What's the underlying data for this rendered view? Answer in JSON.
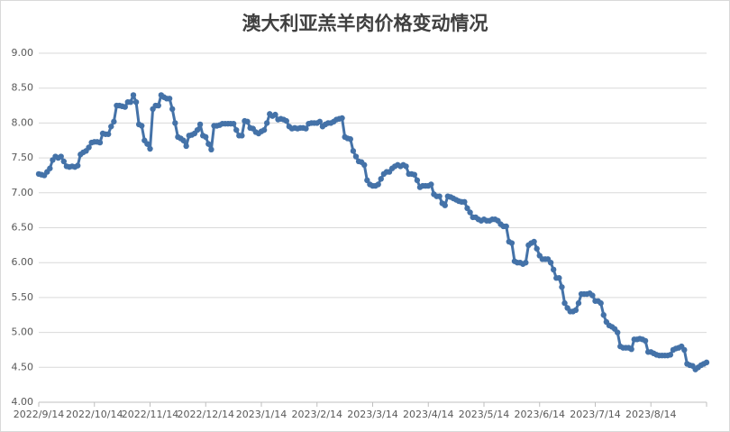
{
  "chart_data": {
    "type": "line",
    "title": "澳大利亚羔羊肉价格变动情况",
    "categories": [
      "2022/9/14",
      null,
      null,
      null,
      null,
      null,
      null,
      null,
      null,
      null,
      null,
      null,
      null,
      null,
      null,
      null,
      null,
      null,
      null,
      null,
      "2022/10/14",
      null,
      null,
      null,
      null,
      null,
      null,
      null,
      null,
      null,
      null,
      null,
      null,
      null,
      null,
      null,
      null,
      null,
      null,
      null,
      "2022/11/14",
      null,
      null,
      null,
      null,
      null,
      null,
      null,
      null,
      null,
      null,
      null,
      null,
      null,
      null,
      null,
      null,
      null,
      null,
      null,
      "2022/12/14",
      null,
      null,
      null,
      null,
      null,
      null,
      null,
      null,
      null,
      null,
      null,
      null,
      null,
      null,
      null,
      null,
      null,
      null,
      null,
      "2023/1/14",
      null,
      null,
      null,
      null,
      null,
      null,
      null,
      null,
      null,
      null,
      null,
      null,
      null,
      null,
      null,
      null,
      null,
      null,
      null,
      "2023/2/14",
      null,
      null,
      null,
      null,
      null,
      null,
      null,
      null,
      null,
      null,
      null,
      null,
      null,
      null,
      null,
      null,
      null,
      null,
      null,
      "2023/3/14",
      null,
      null,
      null,
      null,
      null,
      null,
      null,
      null,
      null,
      null,
      null,
      null,
      null,
      null,
      null,
      null,
      null,
      null,
      null,
      "2023/4/14",
      null,
      null,
      null,
      null,
      null,
      null,
      null,
      null,
      null,
      null,
      null,
      null,
      null,
      null,
      null,
      null,
      null,
      null,
      null,
      "2023/5/14",
      null,
      null,
      null,
      null,
      null,
      null,
      null,
      null,
      null,
      null,
      null,
      null,
      null,
      null,
      null,
      null,
      null,
      null,
      null,
      "2023/6/14",
      null,
      null,
      null,
      null,
      null,
      null,
      null,
      null,
      null,
      null,
      null,
      null,
      null,
      null,
      null,
      null,
      null,
      null,
      null,
      "2023/7/14",
      null,
      null,
      null,
      null,
      null,
      null,
      null,
      null,
      null,
      null,
      null,
      null,
      null,
      null,
      null,
      null,
      null,
      null,
      null,
      "2023/8/14",
      null,
      null,
      null,
      null,
      null,
      null,
      null,
      null,
      null,
      null,
      null,
      null,
      null,
      null,
      null,
      null,
      null,
      null,
      null,
      null
    ],
    "values": [
      7.27,
      7.26,
      7.25,
      7.3,
      7.35,
      7.47,
      7.52,
      7.5,
      7.52,
      7.45,
      7.38,
      7.37,
      7.38,
      7.37,
      7.39,
      7.55,
      7.58,
      7.6,
      7.65,
      7.72,
      7.73,
      7.73,
      7.72,
      7.85,
      7.84,
      7.84,
      7.95,
      8.02,
      8.25,
      8.25,
      8.24,
      8.23,
      8.3,
      8.3,
      8.4,
      8.3,
      7.98,
      7.96,
      7.75,
      7.7,
      7.63,
      8.2,
      8.25,
      8.25,
      8.4,
      8.37,
      8.35,
      8.35,
      8.2,
      8.0,
      7.8,
      7.78,
      7.75,
      7.67,
      7.82,
      7.83,
      7.85,
      7.9,
      7.98,
      7.82,
      7.8,
      7.7,
      7.62,
      7.96,
      7.96,
      7.97,
      7.99,
      7.99,
      7.99,
      7.99,
      7.99,
      7.9,
      7.82,
      7.82,
      8.03,
      8.02,
      7.93,
      7.92,
      7.87,
      7.85,
      7.88,
      7.9,
      8.0,
      8.13,
      8.1,
      8.12,
      8.05,
      8.06,
      8.05,
      8.03,
      7.95,
      7.92,
      7.93,
      7.92,
      7.93,
      7.93,
      7.92,
      7.99,
      8.0,
      8.0,
      8.0,
      8.02,
      7.95,
      7.98,
      8.0,
      8.0,
      8.02,
      8.05,
      8.06,
      8.07,
      7.8,
      7.78,
      7.77,
      7.6,
      7.52,
      7.45,
      7.44,
      7.4,
      7.18,
      7.12,
      7.1,
      7.1,
      7.12,
      7.2,
      7.27,
      7.3,
      7.3,
      7.35,
      7.38,
      7.4,
      7.38,
      7.4,
      7.38,
      7.27,
      7.27,
      7.26,
      7.18,
      7.08,
      7.1,
      7.1,
      7.1,
      7.12,
      6.98,
      6.95,
      6.95,
      6.85,
      6.82,
      6.95,
      6.94,
      6.92,
      6.9,
      6.88,
      6.87,
      6.87,
      6.78,
      6.72,
      6.65,
      6.65,
      6.62,
      6.6,
      6.62,
      6.6,
      6.6,
      6.62,
      6.62,
      6.6,
      6.55,
      6.52,
      6.52,
      6.3,
      6.28,
      6.02,
      6.0,
      6.0,
      5.98,
      6.0,
      6.25,
      6.28,
      6.3,
      6.2,
      6.1,
      6.05,
      6.05,
      6.05,
      6.0,
      5.9,
      5.78,
      5.78,
      5.65,
      5.42,
      5.35,
      5.3,
      5.3,
      5.32,
      5.42,
      5.55,
      5.55,
      5.55,
      5.56,
      5.53,
      5.45,
      5.45,
      5.42,
      5.25,
      5.15,
      5.1,
      5.08,
      5.05,
      5.0,
      4.8,
      4.78,
      4.78,
      4.78,
      4.76,
      4.9,
      4.9,
      4.91,
      4.9,
      4.88,
      4.72,
      4.72,
      4.7,
      4.68,
      4.67,
      4.67,
      4.67,
      4.67,
      4.68,
      4.75,
      4.77,
      4.78,
      4.8,
      4.75,
      4.55,
      4.53,
      4.52,
      4.47,
      4.5,
      4.53,
      4.55,
      4.57
    ],
    "color": "#4472a8",
    "ylim": [
      4,
      9
    ],
    "yticks": [
      {
        "value": 4,
        "label": "4.00"
      },
      {
        "value": 4.5,
        "label": "4.50"
      },
      {
        "value": 5,
        "label": "5.00"
      },
      {
        "value": 5.5,
        "label": "5.50"
      },
      {
        "value": 6,
        "label": "6.00"
      },
      {
        "value": 6.5,
        "label": "6.50"
      },
      {
        "value": 7,
        "label": "7.00"
      },
      {
        "value": 7.5,
        "label": "7.50"
      },
      {
        "value": 8,
        "label": "8.00"
      },
      {
        "value": 8.5,
        "label": "8.50"
      },
      {
        "value": 9,
        "label": "9.00"
      }
    ],
    "grid": true
  }
}
